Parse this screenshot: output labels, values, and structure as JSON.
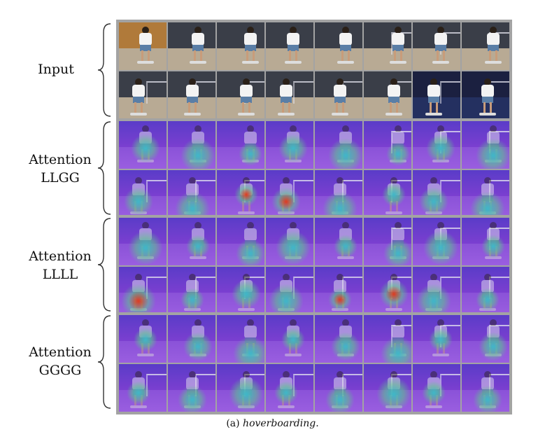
{
  "rows": [
    {
      "label_lines": [
        "Input"
      ]
    },
    {
      "label_lines": [
        "Attention",
        "LLGG"
      ]
    },
    {
      "label_lines": [
        "Attention",
        "LLLL"
      ]
    },
    {
      "label_lines": [
        "Attention",
        "GGGG"
      ]
    }
  ],
  "caption": {
    "prefix": "(a) ",
    "italic": "hoverboarding",
    "suffix": "."
  },
  "colors": {
    "panel_border": "#a3a3a3",
    "attention_base": "#7b3fd0",
    "attention_mid": "#3fb7c8",
    "attention_hot": "#e03b1f"
  }
}
